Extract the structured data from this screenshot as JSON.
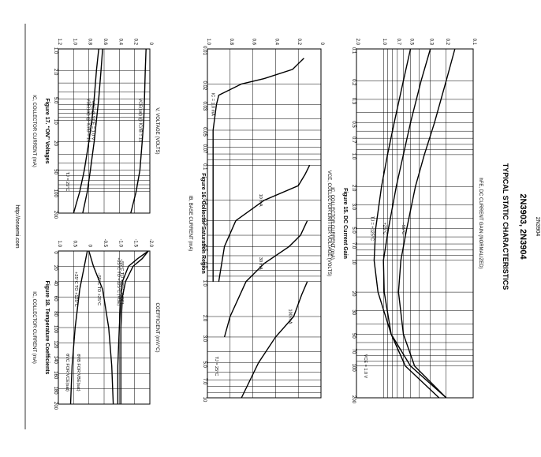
{
  "document": {
    "part_number": "2N3903, 2N3904",
    "section_title": "TYPICAL STATIC CHARACTERISTICS",
    "footer_url": "http://onsemi.com",
    "side_tab": "2N3904"
  },
  "chart_data": [
    {
      "id": "fig15",
      "type": "line",
      "caption": "Figure 15. DC Current Gain",
      "xlabel": "Iₐ, COLLECTOR CURRENT (mA)",
      "xlabel_text": "IC, COLLECTOR CURRENT (mA)",
      "ylabel": "hFE, DC CURRENT GAIN (NORMALIZED)",
      "x_scale": "log",
      "y_scale": "log",
      "xlim": [
        0.1,
        200
      ],
      "ylim": [
        0.1,
        2.0
      ],
      "x_ticks": [
        "0.1",
        "0.2",
        "0.3",
        "0.5",
        "0.7",
        "1.0",
        "2.0",
        "3.0",
        "5.0",
        "7.0",
        "10",
        "20",
        "30",
        "50",
        "70",
        "100",
        "200"
      ],
      "y_ticks": [
        "0.1",
        "0.2",
        "0.3",
        "0.5",
        "0.7",
        "1.0",
        "2.0"
      ],
      "annotations": [
        "VCE = 1.0 V"
      ],
      "series": [
        {
          "name": "TJ = +125°C",
          "x": [
            0.1,
            0.2,
            0.5,
            1,
            2,
            5,
            10,
            20,
            50,
            100,
            200
          ],
          "y": [
            0.5,
            0.6,
            0.76,
            0.9,
            1.05,
            1.22,
            1.27,
            1.15,
            0.82,
            0.5,
            0.2
          ]
        },
        {
          "name": "+25°C",
          "x": [
            0.1,
            0.2,
            0.5,
            1,
            2,
            5,
            10,
            20,
            50,
            100,
            200
          ],
          "y": [
            0.3,
            0.38,
            0.5,
            0.6,
            0.72,
            0.88,
            1.0,
            0.98,
            0.82,
            0.57,
            0.24
          ]
        },
        {
          "name": "–55°C",
          "x": [
            0.1,
            0.2,
            0.5,
            1,
            2,
            5,
            10,
            20,
            50,
            100,
            200
          ],
          "y": [
            0.16,
            0.2,
            0.27,
            0.35,
            0.44,
            0.55,
            0.64,
            0.68,
            0.6,
            0.45,
            0.2
          ]
        }
      ]
    },
    {
      "id": "fig16",
      "type": "line",
      "caption": "Figure 16. Collector Saturation Region",
      "xlabel": "IB, BASE CURRENT (mA)",
      "ylabel": "VCE, COLLECTOR EMITTER VOLTAGE (VOLTS)",
      "x_scale": "log",
      "y_scale": "linear",
      "xlim": [
        0.01,
        10
      ],
      "ylim": [
        0,
        1.0
      ],
      "x_ticks": [
        "0.01",
        "0.02",
        "0.03",
        "0.05",
        "0.07",
        "0.1",
        "0.2",
        "0.3",
        "0.5",
        "0.7",
        "1.0",
        "2.0",
        "3.0",
        "5.0",
        "7.0",
        "10"
      ],
      "y_ticks": [
        "0",
        "0.2",
        "0.4",
        "0.6",
        "0.8",
        "1.0"
      ],
      "annotations": [
        "TJ = 25°C"
      ],
      "series": [
        {
          "name": "IC = 1.0 mA",
          "x": [
            0.012,
            0.015,
            0.018,
            0.02,
            0.025,
            0.03,
            0.05,
            0.1,
            0.2,
            0.5,
            1.0
          ],
          "y": [
            0.15,
            0.25,
            0.5,
            0.7,
            0.9,
            0.92,
            0.95,
            0.95,
            0.95,
            0.95,
            0.95
          ]
        },
        {
          "name": "10 mA",
          "x": [
            0.1,
            0.12,
            0.15,
            0.2,
            0.3,
            0.5,
            1.0
          ],
          "y": [
            0.1,
            0.14,
            0.2,
            0.5,
            0.75,
            0.85,
            0.9
          ]
        },
        {
          "name": "30 mA",
          "x": [
            0.3,
            0.4,
            0.5,
            0.7,
            1.0,
            2.0,
            3.0
          ],
          "y": [
            0.12,
            0.18,
            0.28,
            0.5,
            0.66,
            0.8,
            0.85
          ]
        },
        {
          "name": "100 mA",
          "x": [
            1.0,
            1.3,
            2.0,
            3.0,
            5.0,
            10
          ],
          "y": [
            0.12,
            0.17,
            0.24,
            0.4,
            0.55,
            0.7
          ]
        }
      ]
    },
    {
      "id": "fig17",
      "type": "line",
      "caption": "Figure 17. “ON” Voltages",
      "xlabel": "IC, COLLECTOR CURRENT (mA)",
      "ylabel": "V, VOLTAGE (VOLTS)",
      "x_scale": "log",
      "y_scale": "linear",
      "xlim": [
        1.0,
        200
      ],
      "ylim": [
        0,
        1.2
      ],
      "x_ticks": [
        "1.0",
        "2.0",
        "5.0",
        "10",
        "20",
        "50",
        "100",
        "200"
      ],
      "y_ticks": [
        "0",
        "0.2",
        "0.4",
        "0.6",
        "0.8",
        "1.0",
        "1.2"
      ],
      "annotations": [
        "TJ = 25°C"
      ],
      "series": [
        {
          "name": "VBE(sat) @ IC/IB = 10",
          "x": [
            1,
            2,
            5,
            10,
            20,
            50,
            100,
            200
          ],
          "y": [
            0.67,
            0.7,
            0.73,
            0.76,
            0.8,
            0.86,
            0.92,
            1.0
          ]
        },
        {
          "name": "VBE @ VCE = 1.0 V",
          "x": [
            1,
            2,
            5,
            10,
            20,
            50,
            100,
            200
          ],
          "y": [
            0.62,
            0.64,
            0.67,
            0.7,
            0.73,
            0.78,
            0.82,
            0.88
          ]
        },
        {
          "name": "VCE(sat) @ IC/IB = 10",
          "x": [
            1,
            2,
            5,
            10,
            20,
            50,
            100,
            200
          ],
          "y": [
            0.05,
            0.06,
            0.07,
            0.08,
            0.1,
            0.13,
            0.18,
            0.25
          ]
        }
      ]
    },
    {
      "id": "fig18",
      "type": "line",
      "caption": "Figure 18. Temperature Coefficients",
      "xlabel": "IC, COLLECTOR CURRENT (mA)",
      "ylabel": "COEFFICIENT (mV/°C)",
      "x_scale": "linear",
      "y_scale": "linear",
      "xlim": [
        0,
        200
      ],
      "ylim": [
        -2.0,
        1.0
      ],
      "x_ticks": [
        "0",
        "20",
        "40",
        "60",
        "80",
        "100",
        "120",
        "140",
        "160",
        "180",
        "200"
      ],
      "y_ticks": [
        "-2.0",
        "-1.5",
        "-1.0",
        "-0.5",
        "0",
        "0.5",
        "1.0"
      ],
      "annotations": [
        "θVC FOR VCE(sat)",
        "θVB FOR VBE(sat)"
      ],
      "series": [
        {
          "name": "+25°C TO +125°C",
          "x": [
            0,
            20,
            50,
            100,
            150,
            200
          ],
          "y": [
            0.05,
            0.15,
            0.3,
            0.45,
            0.55,
            0.6
          ]
        },
        {
          "name": "–55°C TO +25°C",
          "x": [
            0,
            20,
            50,
            100,
            150,
            200
          ],
          "y": [
            0.0,
            -0.15,
            -0.45,
            -0.65,
            -0.75,
            -0.8
          ]
        },
        {
          "name": "–55°C TO +25°C (VBE)",
          "x": [
            0,
            10,
            20,
            40,
            60,
            100,
            150,
            200
          ],
          "y": [
            -1.95,
            -1.75,
            -1.45,
            -1.2,
            -1.1,
            -1.05,
            -1.05,
            -1.05
          ]
        },
        {
          "name": "+25°C TO +125°C (VBE)",
          "x": [
            0,
            10,
            20,
            40,
            60,
            100,
            150,
            200
          ],
          "y": [
            -1.95,
            -1.6,
            -1.3,
            -1.1,
            -1.05,
            -1.0,
            -0.95,
            -0.95
          ]
        }
      ]
    }
  ]
}
